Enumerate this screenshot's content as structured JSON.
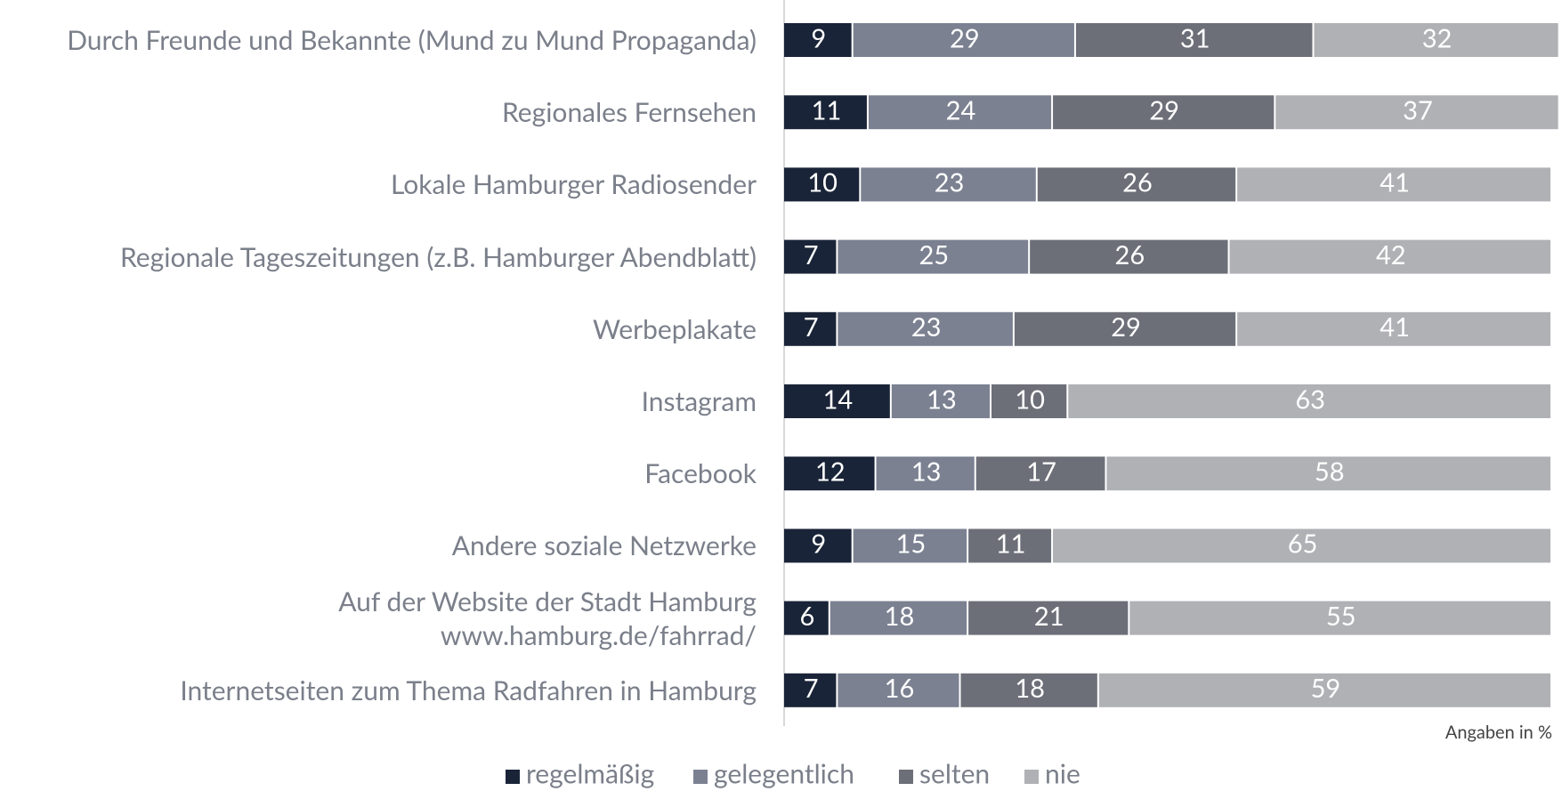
{
  "chart_data": {
    "type": "stacked_bar_horizontal",
    "categories": [
      "Durch Freunde und Bekannte (Mund zu Mund Propaganda)",
      "Regionales Fernsehen",
      "Lokale Hamburger Radiosender",
      "Regionale Tageszeitungen (z.B. Hamburger Abendblatt)",
      "Werbeplakate",
      "Instagram",
      "Facebook",
      "Andere soziale Netzwerke",
      "Auf der Website der Stadt Hamburg\nwww.hamburg.de/fahrrad/",
      "Internetseiten zum Thema Radfahren in Hamburg"
    ],
    "series": [
      {
        "name": "regelmäßig",
        "color": "#1a2438",
        "values": [
          9,
          11,
          10,
          7,
          7,
          14,
          12,
          9,
          6,
          7
        ]
      },
      {
        "name": "gelegentlich",
        "color": "#7b8191",
        "values": [
          29,
          24,
          23,
          25,
          23,
          13,
          13,
          15,
          18,
          16
        ]
      },
      {
        "name": "selten",
        "color": "#6d6f78",
        "values": [
          31,
          29,
          26,
          26,
          29,
          10,
          17,
          11,
          21,
          18
        ]
      },
      {
        "name": "nie",
        "color": "#b0b1b5",
        "values": [
          32,
          37,
          41,
          42,
          41,
          63,
          58,
          65,
          55,
          59
        ]
      }
    ],
    "xlim": [
      0,
      100
    ],
    "annotation": "Angaben in %",
    "legend": "bottom"
  }
}
